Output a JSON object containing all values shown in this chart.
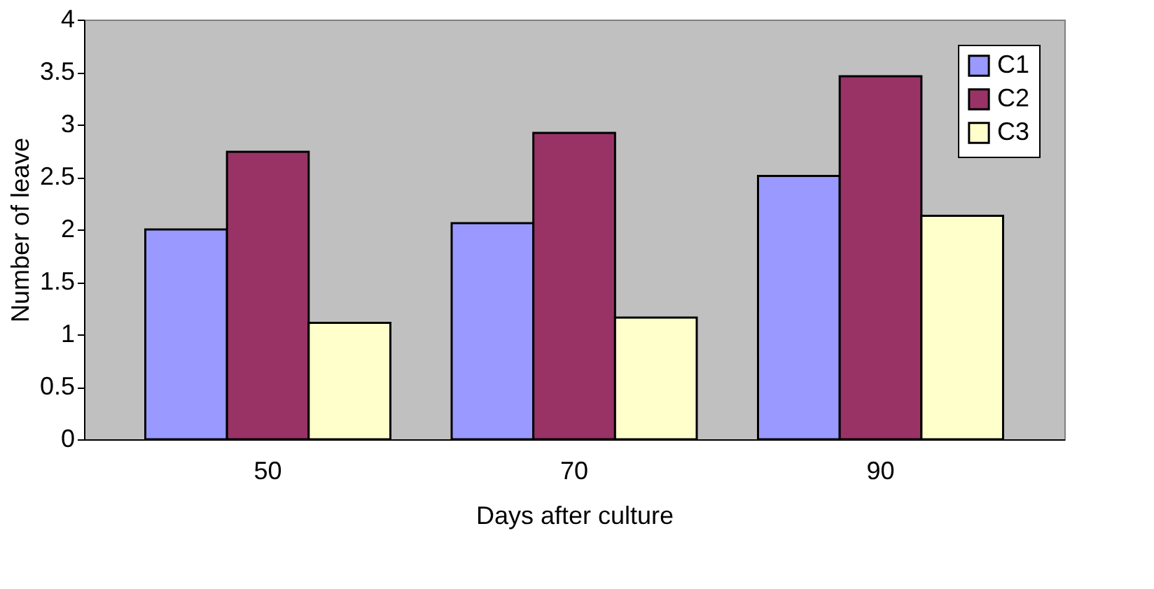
{
  "chart_data": {
    "type": "bar",
    "xlabel": "Days after culture",
    "ylabel": "Number of leave",
    "categories": [
      "50",
      "70",
      "90"
    ],
    "series": [
      {
        "name": "C1",
        "color": "#9999ff",
        "values": [
          2.0,
          2.06,
          2.51
        ]
      },
      {
        "name": "C2",
        "color": "#993366",
        "values": [
          2.74,
          2.92,
          3.46
        ]
      },
      {
        "name": "C3",
        "color": "#ffffcc",
        "values": [
          1.11,
          1.16,
          2.13
        ]
      }
    ],
    "ylim": [
      0,
      4
    ],
    "yticks": [
      0,
      0.5,
      1,
      1.5,
      2,
      2.5,
      3,
      3.5,
      4
    ],
    "grid": false,
    "legend": "top right"
  }
}
